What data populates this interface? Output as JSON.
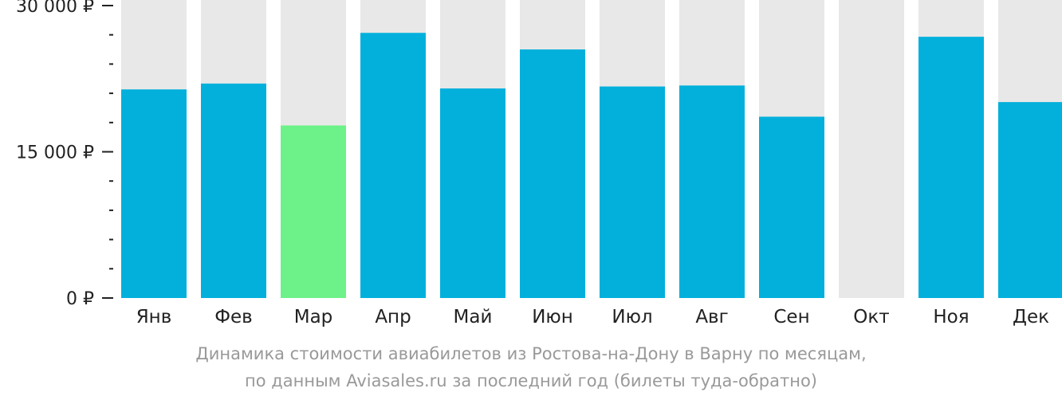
{
  "chart_data": {
    "type": "bar",
    "categories": [
      "Янв",
      "Фев",
      "Мар",
      "Апр",
      "Май",
      "Июн",
      "Июл",
      "Авг",
      "Сен",
      "Окт",
      "Ноя",
      "Дек"
    ],
    "values": [
      21400,
      22000,
      17700,
      27200,
      21500,
      25500,
      21700,
      21800,
      18600,
      null,
      26800,
      20100
    ],
    "highlight_category": "Мар",
    "ylim": [
      0,
      30000
    ],
    "yticks": [
      {
        "value": 0,
        "label": "0 ₽"
      },
      {
        "value": 15000,
        "label": "15 000 ₽"
      },
      {
        "value": 30000,
        "label": "30 000 ₽"
      }
    ],
    "minor_tick_step": 3000,
    "grid": false,
    "legend": "none",
    "colors": {
      "bar": "#03b0dc",
      "highlight": "#6cf288",
      "background_bar": "#e8e8e8",
      "axis": "#222222"
    }
  },
  "caption": {
    "line1": "Динамика стоимости авиабилетов из Ростова-на-Дону в Варну по месяцам,",
    "line2": "по данным Aviasales.ru за последний год (билеты туда-обратно)"
  }
}
